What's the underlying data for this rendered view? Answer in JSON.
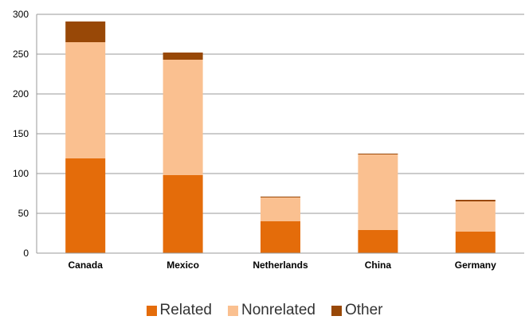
{
  "chart_data": {
    "type": "bar",
    "stacked": true,
    "categories": [
      "Canada",
      "Mexico",
      "Netherlands",
      "China",
      "Germany"
    ],
    "series": [
      {
        "name": "Related",
        "color": "#E46C0A",
        "values": [
          119,
          98,
          40,
          29,
          27
        ]
      },
      {
        "name": "Nonrelated",
        "color": "#FAC090",
        "values": [
          146,
          145,
          30,
          95,
          38
        ]
      },
      {
        "name": "Other",
        "color": "#984807",
        "values": [
          26,
          9,
          1,
          1,
          2
        ]
      }
    ],
    "ylim": [
      0,
      300
    ],
    "yticks": [
      "0",
      "50",
      "100",
      "150",
      "200",
      "250",
      "300"
    ],
    "grid": true,
    "legend_position": "bottom"
  }
}
